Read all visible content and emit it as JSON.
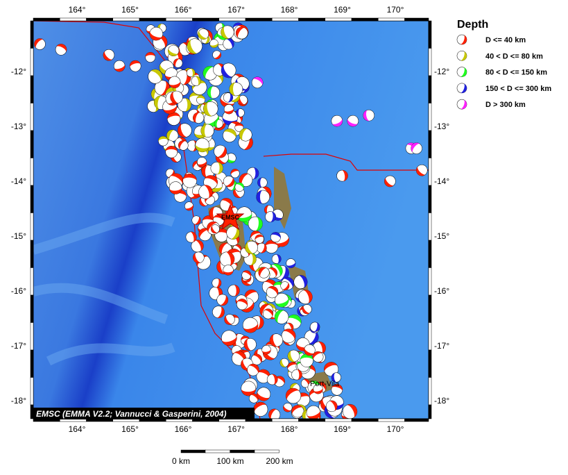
{
  "map": {
    "x_labels": [
      "164°",
      "165°",
      "166°",
      "167°",
      "168°",
      "169°",
      "170°"
    ],
    "y_labels": [
      "-12°",
      "-13°",
      "-14°",
      "-15°",
      "-16°",
      "-17°",
      "-18°"
    ],
    "legend": {
      "title": "Depth",
      "items": [
        {
          "label": "D <= 40 km",
          "color": "#ff2000"
        },
        {
          "label": "40 < D <= 80 km",
          "color": "#c8c800"
        },
        {
          "label": "80 < D <= 150 km",
          "color": "#20ff20"
        },
        {
          "label": "150 < D <= 300 km",
          "color": "#2020e0"
        },
        {
          "label": "D > 300 km",
          "color": "#ff20ff"
        }
      ]
    },
    "credit": "EMSC (EMMA V2.2; Vannucci & Gasperini, 2004)",
    "scale_labels": [
      "0 km",
      "100 km",
      "200 km"
    ],
    "epicenter_label": "EMSC",
    "place_label": "Port-Vila"
  }
}
